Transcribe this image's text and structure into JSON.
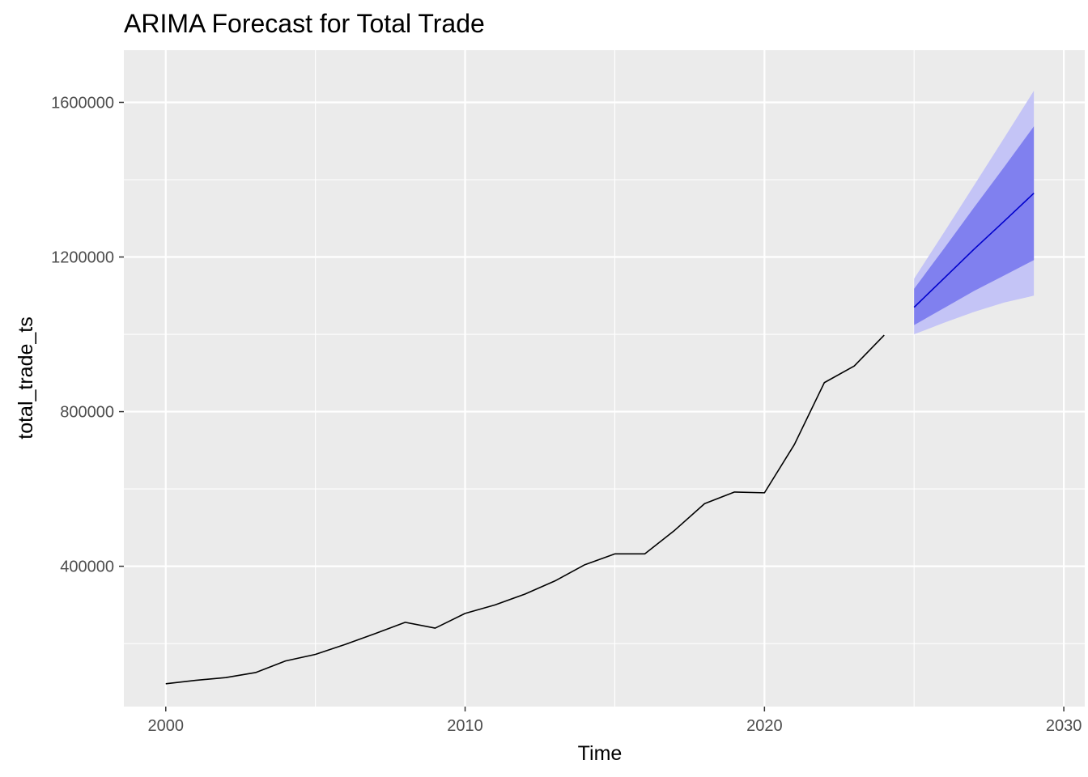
{
  "chart_data": {
    "type": "line",
    "title": "ARIMA Forecast for Total Trade",
    "xlabel": "Time",
    "ylabel": "total_trade_ts",
    "xlim": [
      1998.6,
      2030.7
    ],
    "ylim": [
      37000,
      1735000
    ],
    "x_ticks": [
      2000,
      2010,
      2020,
      2030
    ],
    "x_tick_labels": [
      "2000",
      "2010",
      "2020",
      "2030"
    ],
    "y_ticks": [
      400000,
      800000,
      1200000,
      1600000
    ],
    "y_tick_labels": [
      "400000",
      "800000",
      "1200000",
      "1600000"
    ],
    "grid": true,
    "legend": "none",
    "colors": {
      "panel_bg": "#ebebeb",
      "grid": "#ffffff",
      "history_line": "#000000",
      "forecast_line": "#0000cc",
      "band_80": "#8080ef",
      "band_95": "#c4c4f6",
      "tick_label": "#4d4d4d",
      "tick_mark": "#333333"
    },
    "series": [
      {
        "kind": "history",
        "x": [
          2000,
          2001,
          2002,
          2003,
          2004,
          2005,
          2006,
          2007,
          2008,
          2009,
          2010,
          2011,
          2012,
          2013,
          2014,
          2015,
          2016,
          2017,
          2018,
          2019,
          2020,
          2021,
          2022,
          2023,
          2024
        ],
        "values": [
          96000,
          105000,
          112000,
          125000,
          155000,
          172000,
          198000,
          226000,
          255000,
          240000,
          278000,
          300000,
          328000,
          362000,
          404000,
          432000,
          432000,
          493000,
          562000,
          592000,
          590000,
          715000,
          875000,
          918000,
          998000
        ]
      },
      {
        "kind": "forecast",
        "x": [
          2025,
          2026,
          2027,
          2028,
          2029
        ],
        "values": [
          1070000,
          1145000,
          1220000,
          1292000,
          1365000
        ],
        "lo80": [
          1024000,
          1068000,
          1112000,
          1152000,
          1192000
        ],
        "hi80": [
          1118000,
          1222000,
          1328000,
          1432000,
          1538000
        ],
        "lo95": [
          1000000,
          1030000,
          1058000,
          1082000,
          1100000
        ],
        "hi95": [
          1144000,
          1264000,
          1385000,
          1507000,
          1630000
        ]
      }
    ]
  }
}
